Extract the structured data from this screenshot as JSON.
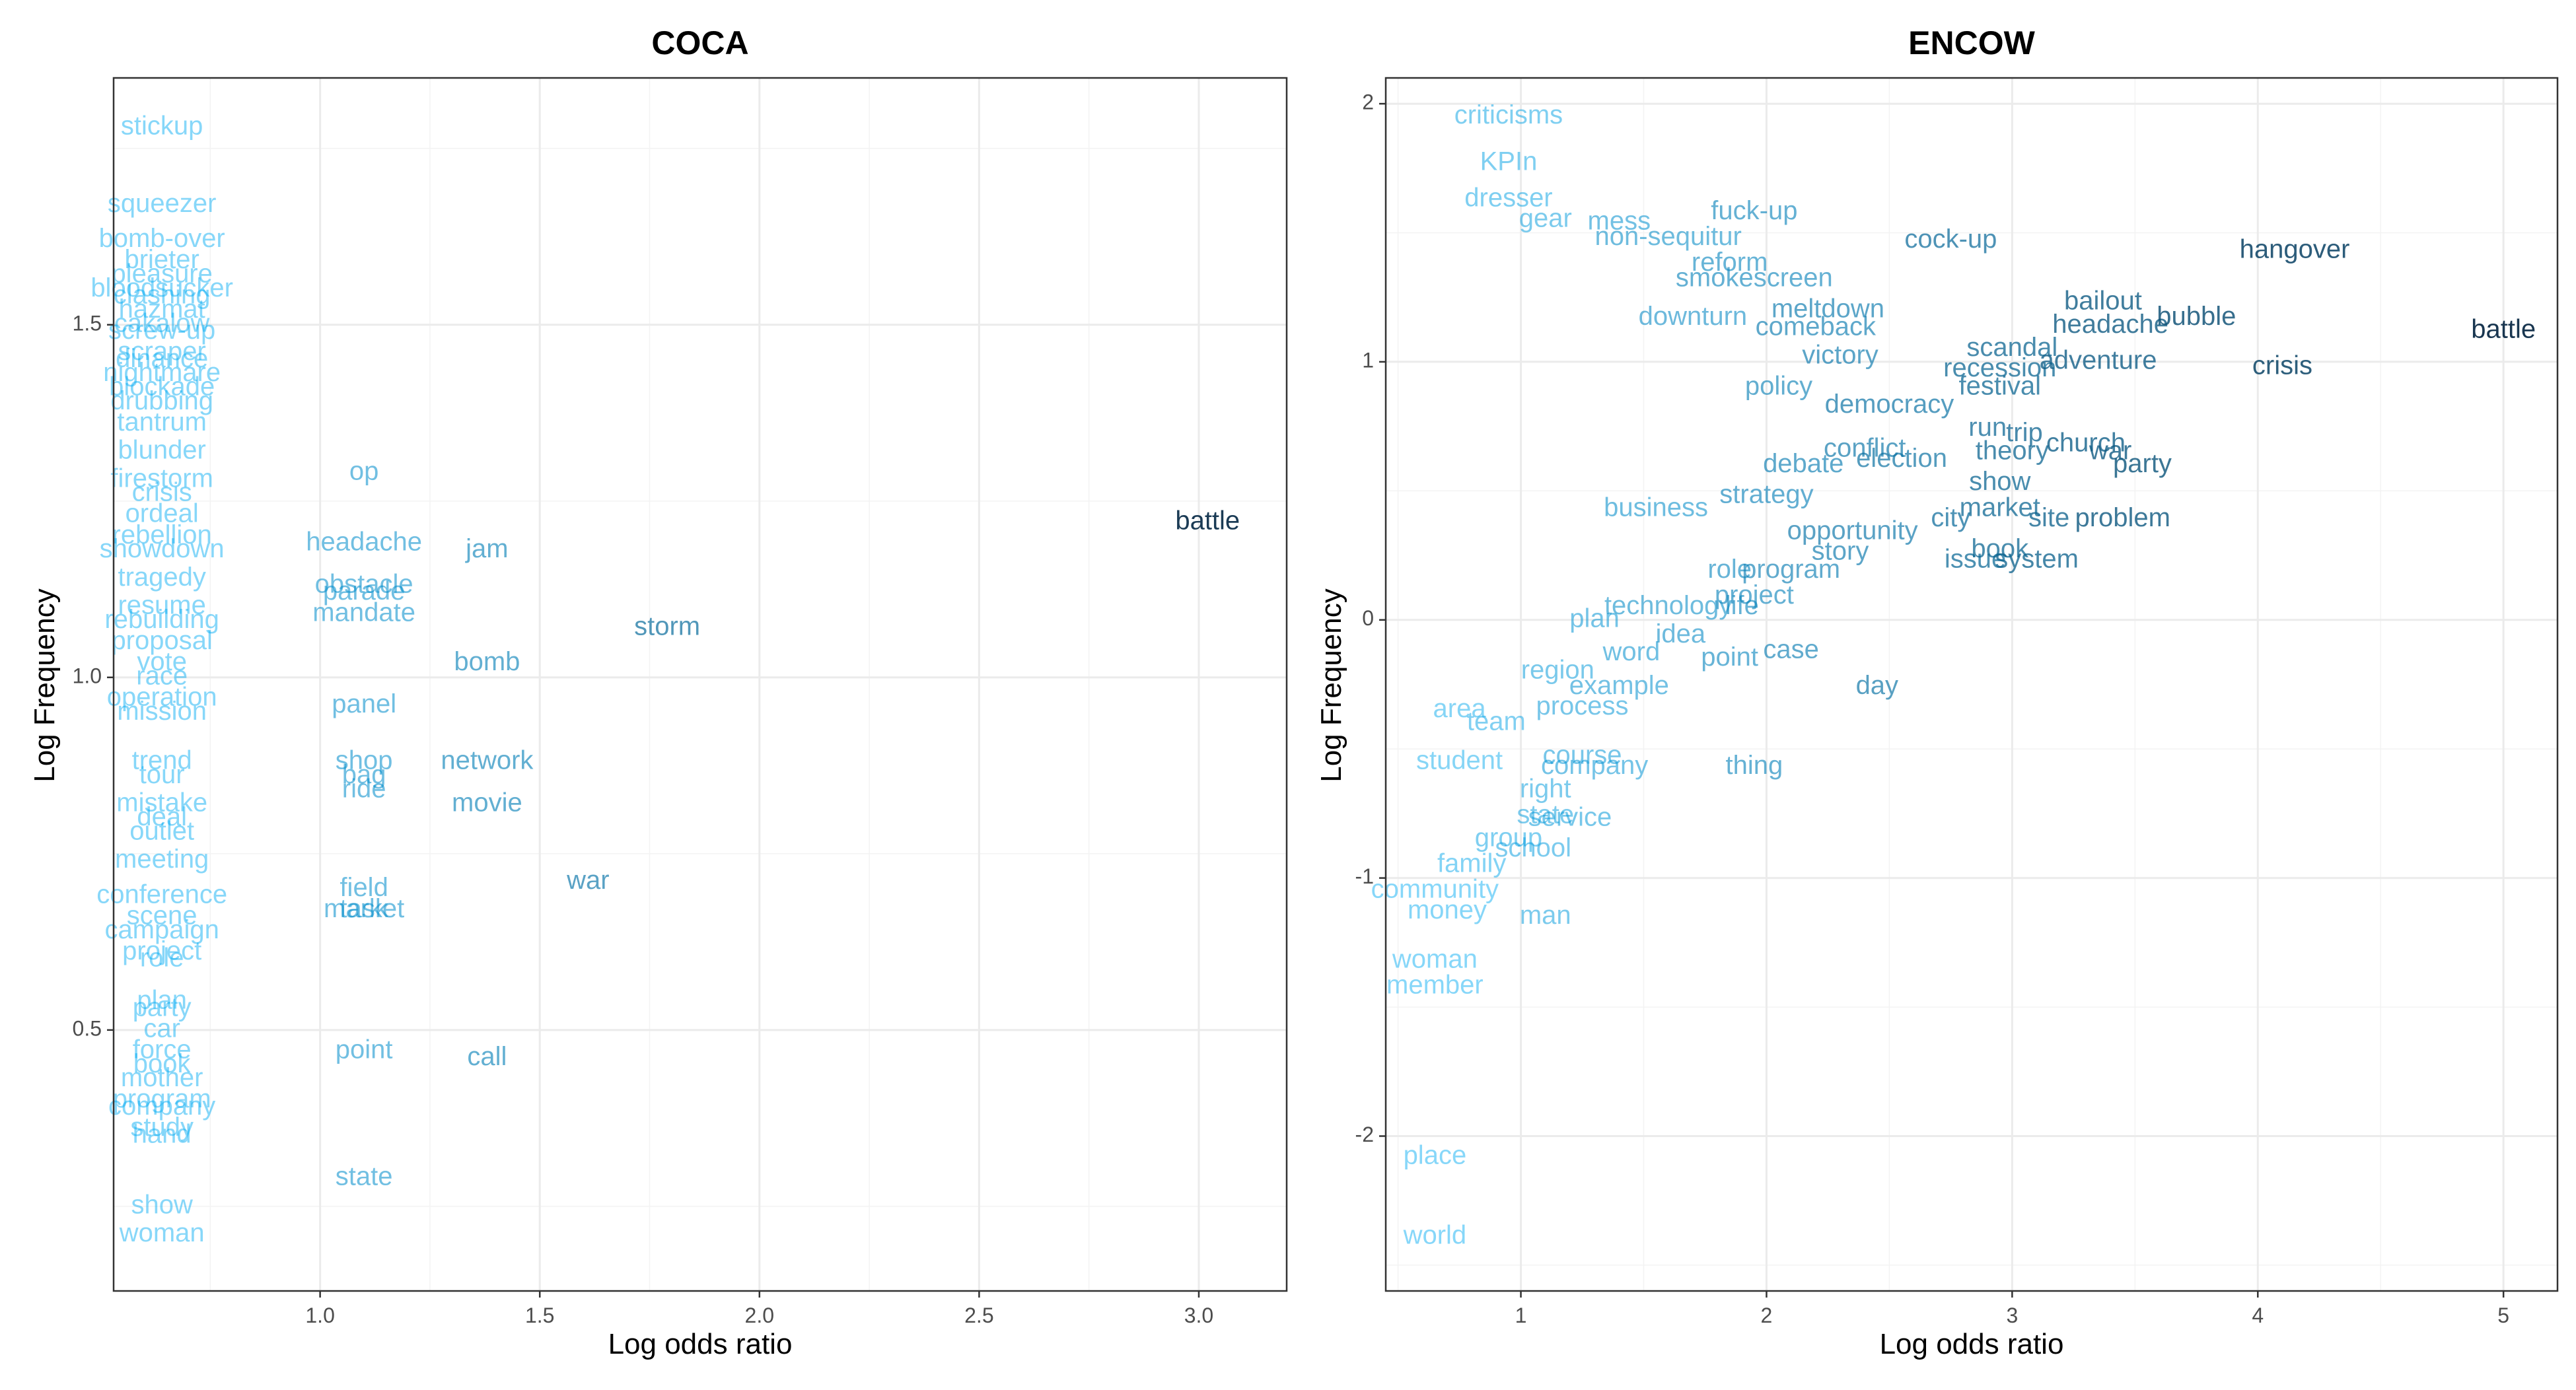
{
  "chart_data": [
    {
      "type": "scatter",
      "title": "COCA",
      "xlabel": "Log odds ratio",
      "ylabel": "Log Frequency",
      "xlim": [
        0.53,
        3.2
      ],
      "ylim": [
        0.13,
        1.85
      ],
      "xticks": [
        1.0,
        1.5,
        2.0,
        2.5,
        3.0
      ],
      "xtick_labels": [
        "1.0",
        "1.5",
        "2.0",
        "2.5",
        "3.0"
      ],
      "yticks": [
        0.5,
        1.0,
        1.5
      ],
      "ytick_labels": [
        "0.5",
        "1.0",
        "1.5"
      ],
      "grid": true,
      "color_scale": {
        "low": "#00b4ff",
        "high": "#132b43"
      },
      "points": [
        {
          "label": "battle",
          "x": 3.02,
          "y": 1.22
        },
        {
          "label": "storm",
          "x": 1.79,
          "y": 1.07
        },
        {
          "label": "war",
          "x": 1.61,
          "y": 0.71
        },
        {
          "label": "jam",
          "x": 1.38,
          "y": 1.18
        },
        {
          "label": "bomb",
          "x": 1.38,
          "y": 1.02
        },
        {
          "label": "network",
          "x": 1.38,
          "y": 0.88
        },
        {
          "label": "movie",
          "x": 1.38,
          "y": 0.82
        },
        {
          "label": "call",
          "x": 1.38,
          "y": 0.46
        },
        {
          "label": "op",
          "x": 1.1,
          "y": 1.29
        },
        {
          "label": "headache",
          "x": 1.1,
          "y": 1.19
        },
        {
          "label": "obstacle",
          "x": 1.1,
          "y": 1.13
        },
        {
          "label": "parade",
          "x": 1.1,
          "y": 1.12
        },
        {
          "label": "mandate",
          "x": 1.1,
          "y": 1.09
        },
        {
          "label": "panel",
          "x": 1.1,
          "y": 0.96
        },
        {
          "label": "shop",
          "x": 1.1,
          "y": 0.88
        },
        {
          "label": "bag",
          "x": 1.1,
          "y": 0.86
        },
        {
          "label": "ride",
          "x": 1.1,
          "y": 0.84
        },
        {
          "label": "field",
          "x": 1.1,
          "y": 0.7
        },
        {
          "label": "task",
          "x": 1.1,
          "y": 0.67
        },
        {
          "label": "market",
          "x": 1.1,
          "y": 0.67
        },
        {
          "label": "point",
          "x": 1.1,
          "y": 0.47
        },
        {
          "label": "state",
          "x": 1.1,
          "y": 0.29
        },
        {
          "label": "stickup",
          "x": 0.64,
          "y": 1.78
        },
        {
          "label": "squeezer",
          "x": 0.64,
          "y": 1.67
        },
        {
          "label": "bomb-over",
          "x": 0.64,
          "y": 1.62
        },
        {
          "label": "brieter",
          "x": 0.64,
          "y": 1.59
        },
        {
          "label": "pleasure",
          "x": 0.64,
          "y": 1.57
        },
        {
          "label": "bloodsucker",
          "x": 0.64,
          "y": 1.55
        },
        {
          "label": "clashing",
          "x": 0.64,
          "y": 1.54
        },
        {
          "label": "hazmat",
          "x": 0.64,
          "y": 1.52
        },
        {
          "label": "cakalow",
          "x": 0.64,
          "y": 1.5
        },
        {
          "label": "screw-up",
          "x": 0.64,
          "y": 1.49
        },
        {
          "label": "scraper",
          "x": 0.64,
          "y": 1.46
        },
        {
          "label": "dinance",
          "x": 0.64,
          "y": 1.45
        },
        {
          "label": "nightmare",
          "x": 0.64,
          "y": 1.43
        },
        {
          "label": "blockade",
          "x": 0.64,
          "y": 1.41
        },
        {
          "label": "drubbing",
          "x": 0.64,
          "y": 1.39
        },
        {
          "label": "tantrum",
          "x": 0.64,
          "y": 1.36
        },
        {
          "label": "blunder",
          "x": 0.64,
          "y": 1.32
        },
        {
          "label": "firestorm",
          "x": 0.64,
          "y": 1.28
        },
        {
          "label": "crisis",
          "x": 0.64,
          "y": 1.26
        },
        {
          "label": "ordeal",
          "x": 0.64,
          "y": 1.23
        },
        {
          "label": "rebellion",
          "x": 0.64,
          "y": 1.2
        },
        {
          "label": "showdown",
          "x": 0.64,
          "y": 1.18
        },
        {
          "label": "tragedy",
          "x": 0.64,
          "y": 1.14
        },
        {
          "label": "resume",
          "x": 0.64,
          "y": 1.1
        },
        {
          "label": "rebuilding",
          "x": 0.64,
          "y": 1.08
        },
        {
          "label": "proposal",
          "x": 0.64,
          "y": 1.05
        },
        {
          "label": "vote",
          "x": 0.64,
          "y": 1.02
        },
        {
          "label": "race",
          "x": 0.64,
          "y": 1.0
        },
        {
          "label": "operation",
          "x": 0.64,
          "y": 0.97
        },
        {
          "label": "mission",
          "x": 0.64,
          "y": 0.95
        },
        {
          "label": "trend",
          "x": 0.64,
          "y": 0.88
        },
        {
          "label": "tour",
          "x": 0.64,
          "y": 0.86
        },
        {
          "label": "mistake",
          "x": 0.64,
          "y": 0.82
        },
        {
          "label": "deal",
          "x": 0.64,
          "y": 0.8
        },
        {
          "label": "outlet",
          "x": 0.64,
          "y": 0.78
        },
        {
          "label": "meeting",
          "x": 0.64,
          "y": 0.74
        },
        {
          "label": "conference",
          "x": 0.64,
          "y": 0.69
        },
        {
          "label": "scene",
          "x": 0.64,
          "y": 0.66
        },
        {
          "label": "campaign",
          "x": 0.64,
          "y": 0.64
        },
        {
          "label": "project",
          "x": 0.64,
          "y": 0.61
        },
        {
          "label": "role",
          "x": 0.64,
          "y": 0.6
        },
        {
          "label": "plan",
          "x": 0.64,
          "y": 0.54
        },
        {
          "label": "party",
          "x": 0.64,
          "y": 0.53
        },
        {
          "label": "car",
          "x": 0.64,
          "y": 0.5
        },
        {
          "label": "force",
          "x": 0.64,
          "y": 0.47
        },
        {
          "label": "book",
          "x": 0.64,
          "y": 0.45
        },
        {
          "label": "mother",
          "x": 0.64,
          "y": 0.43
        },
        {
          "label": "program",
          "x": 0.64,
          "y": 0.4
        },
        {
          "label": "company",
          "x": 0.64,
          "y": 0.39
        },
        {
          "label": "study",
          "x": 0.64,
          "y": 0.36
        },
        {
          "label": "hand",
          "x": 0.64,
          "y": 0.35
        },
        {
          "label": "show",
          "x": 0.64,
          "y": 0.25
        },
        {
          "label": "woman",
          "x": 0.64,
          "y": 0.21
        }
      ]
    },
    {
      "type": "scatter",
      "title": "ENCOW",
      "xlabel": "Log odds ratio",
      "ylabel": "Log Frequency",
      "xlim": [
        0.45,
        5.22
      ],
      "ylim": [
        -2.6,
        2.1
      ],
      "xticks": [
        1,
        2,
        3,
        4,
        5
      ],
      "xtick_labels": [
        "1",
        "2",
        "3",
        "4",
        "5"
      ],
      "yticks": [
        -2,
        -1,
        0,
        1,
        2
      ],
      "ytick_labels": [
        "-2",
        "-1",
        "0",
        "1",
        "2"
      ],
      "grid": true,
      "color_scale": {
        "low": "#00b4ff",
        "high": "#132b43"
      },
      "points": [
        {
          "label": "battle",
          "x": 5.0,
          "y": 1.12
        },
        {
          "label": "hangover",
          "x": 4.15,
          "y": 1.43
        },
        {
          "label": "bubble",
          "x": 3.75,
          "y": 1.17
        },
        {
          "label": "crisis",
          "x": 4.1,
          "y": 0.98
        },
        {
          "label": "bailout",
          "x": 3.37,
          "y": 1.23
        },
        {
          "label": "headache",
          "x": 3.4,
          "y": 1.14
        },
        {
          "label": "adventure",
          "x": 3.35,
          "y": 1.0
        },
        {
          "label": "war",
          "x": 3.4,
          "y": 0.65
        },
        {
          "label": "party",
          "x": 3.53,
          "y": 0.6
        },
        {
          "label": "church",
          "x": 3.3,
          "y": 0.68
        },
        {
          "label": "problem",
          "x": 3.45,
          "y": 0.39
        },
        {
          "label": "cock-up",
          "x": 2.75,
          "y": 1.47
        },
        {
          "label": "fuck-up",
          "x": 1.95,
          "y": 1.58
        },
        {
          "label": "smokescreen",
          "x": 1.95,
          "y": 1.32
        },
        {
          "label": "meltdown",
          "x": 2.25,
          "y": 1.2
        },
        {
          "label": "comeback",
          "x": 2.2,
          "y": 1.13
        },
        {
          "label": "scandal",
          "x": 3.0,
          "y": 1.05
        },
        {
          "label": "recession",
          "x": 2.95,
          "y": 0.97
        },
        {
          "label": "festival",
          "x": 2.95,
          "y": 0.9
        },
        {
          "label": "democracy",
          "x": 2.5,
          "y": 0.83
        },
        {
          "label": "run",
          "x": 2.9,
          "y": 0.74
        },
        {
          "label": "trip",
          "x": 3.05,
          "y": 0.72
        },
        {
          "label": "theory",
          "x": 3.0,
          "y": 0.65
        },
        {
          "label": "conflict",
          "x": 2.4,
          "y": 0.66
        },
        {
          "label": "election",
          "x": 2.55,
          "y": 0.62
        },
        {
          "label": "show",
          "x": 2.95,
          "y": 0.53
        },
        {
          "label": "market",
          "x": 2.95,
          "y": 0.43
        },
        {
          "label": "site",
          "x": 3.15,
          "y": 0.39
        },
        {
          "label": "city",
          "x": 2.75,
          "y": 0.39
        },
        {
          "label": "book",
          "x": 2.95,
          "y": 0.27
        },
        {
          "label": "issue",
          "x": 2.85,
          "y": 0.23
        },
        {
          "label": "system",
          "x": 3.1,
          "y": 0.23
        },
        {
          "label": "opportunity",
          "x": 2.35,
          "y": 0.34
        },
        {
          "label": "story",
          "x": 2.3,
          "y": 0.26
        },
        {
          "label": "role",
          "x": 1.85,
          "y": 0.19
        },
        {
          "label": "program",
          "x": 2.1,
          "y": 0.19
        },
        {
          "label": "project",
          "x": 1.95,
          "y": 0.09
        },
        {
          "label": "life",
          "x": 1.9,
          "y": 0.05
        },
        {
          "label": "idea",
          "x": 1.65,
          "y": -0.06
        },
        {
          "label": "case",
          "x": 2.1,
          "y": -0.12
        },
        {
          "label": "point",
          "x": 1.85,
          "y": -0.15
        },
        {
          "label": "word",
          "x": 1.45,
          "y": -0.13
        },
        {
          "label": "day",
          "x": 2.45,
          "y": -0.26
        },
        {
          "label": "example",
          "x": 1.4,
          "y": -0.26
        },
        {
          "label": "process",
          "x": 1.25,
          "y": -0.34
        },
        {
          "label": "thing",
          "x": 1.95,
          "y": -0.57
        },
        {
          "label": "company",
          "x": 1.3,
          "y": -0.57
        },
        {
          "label": "service",
          "x": 1.2,
          "y": -0.77
        },
        {
          "label": "state",
          "x": 1.1,
          "y": -0.76
        },
        {
          "label": "group",
          "x": 0.95,
          "y": -0.85
        },
        {
          "label": "school",
          "x": 1.05,
          "y": -0.89
        },
        {
          "label": "community",
          "x": 0.65,
          "y": -1.05
        },
        {
          "label": "money",
          "x": 0.7,
          "y": -1.13
        },
        {
          "label": "man",
          "x": 1.1,
          "y": -1.15
        },
        {
          "label": "woman",
          "x": 0.65,
          "y": -1.32
        },
        {
          "label": "member",
          "x": 0.65,
          "y": -1.42
        },
        {
          "label": "place",
          "x": 0.65,
          "y": -2.08
        },
        {
          "label": "world",
          "x": 0.65,
          "y": -2.39
        },
        {
          "label": "criticisms",
          "x": 0.95,
          "y": 1.95
        },
        {
          "label": "KPIn",
          "x": 0.95,
          "y": 1.77
        },
        {
          "label": "dresser",
          "x": 0.95,
          "y": 1.63
        },
        {
          "label": "gear",
          "x": 1.1,
          "y": 1.55
        },
        {
          "label": "mess",
          "x": 1.4,
          "y": 1.54
        },
        {
          "label": "non-sequitur",
          "x": 1.6,
          "y": 1.48
        },
        {
          "label": "reform",
          "x": 1.85,
          "y": 1.38
        },
        {
          "label": "downturn",
          "x": 1.7,
          "y": 1.17
        },
        {
          "label": "victory",
          "x": 2.3,
          "y": 1.02
        },
        {
          "label": "policy",
          "x": 2.05,
          "y": 0.9
        },
        {
          "label": "debate",
          "x": 2.15,
          "y": 0.6
        },
        {
          "label": "strategy",
          "x": 2.0,
          "y": 0.48
        },
        {
          "label": "business",
          "x": 1.55,
          "y": 0.43
        },
        {
          "label": "technology",
          "x": 1.6,
          "y": 0.05
        },
        {
          "label": "plan",
          "x": 1.3,
          "y": 0.0
        },
        {
          "label": "region",
          "x": 1.15,
          "y": -0.2
        },
        {
          "label": "course",
          "x": 1.25,
          "y": -0.53
        },
        {
          "label": "right",
          "x": 1.1,
          "y": -0.66
        },
        {
          "label": "student",
          "x": 0.75,
          "y": -0.55
        },
        {
          "label": "family",
          "x": 0.8,
          "y": -0.95
        },
        {
          "label": "team",
          "x": 0.9,
          "y": -0.4
        },
        {
          "label": "area",
          "x": 0.75,
          "y": -0.35
        }
      ]
    }
  ]
}
